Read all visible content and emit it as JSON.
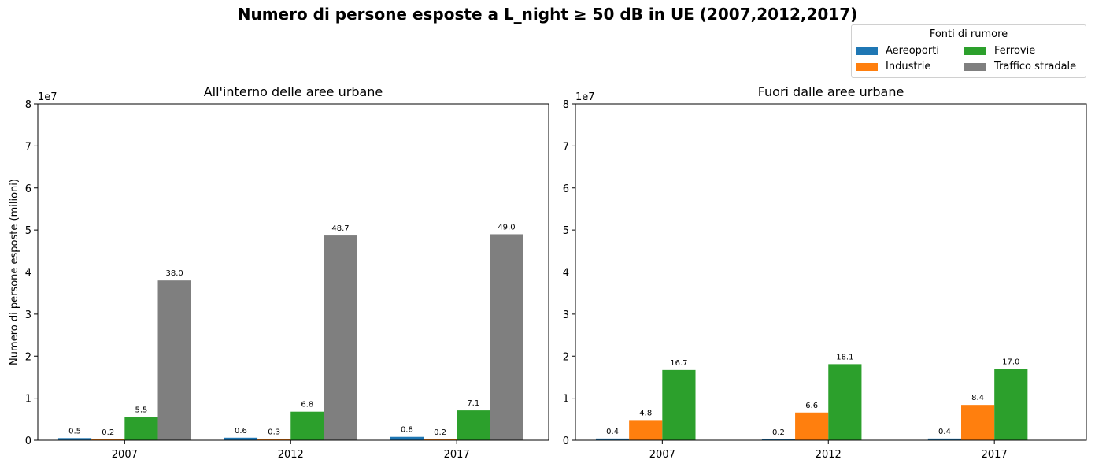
{
  "title": "Numero di persone esposte a L_night ≥ 50 dB in UE (2007,2012,2017)",
  "legend": {
    "title": "Fonti di rumore",
    "items": [
      {
        "label": "Aereoporti",
        "color": "#1f77b4"
      },
      {
        "label": "Industrie",
        "color": "#ff7f0e"
      },
      {
        "label": "Ferrovie",
        "color": "#2ca02c"
      },
      {
        "label": "Traffico stradale",
        "color": "#7f7f7f"
      }
    ]
  },
  "chart_data": [
    {
      "type": "bar",
      "title": "All'interno delle aree urbane",
      "ylabel": "Numero di persone esposte (milioni)",
      "y_offset_label": "1e7",
      "ylim": [
        0,
        80000000
      ],
      "yticks": [
        "0",
        "1",
        "2",
        "3",
        "4",
        "5",
        "6",
        "7",
        "8"
      ],
      "categories": [
        "2007",
        "2012",
        "2017"
      ],
      "series": [
        {
          "name": "Aereoporti",
          "color": "#1f77b4",
          "values": [
            500000,
            600000,
            800000
          ],
          "labels": [
            "0.5",
            "0.6",
            "0.8"
          ]
        },
        {
          "name": "Industrie",
          "color": "#ff7f0e",
          "values": [
            200000,
            300000,
            200000
          ],
          "labels": [
            "0.2",
            "0.3",
            "0.2"
          ]
        },
        {
          "name": "Ferrovie",
          "color": "#2ca02c",
          "values": [
            5500000,
            6800000,
            7100000
          ],
          "labels": [
            "5.5",
            "6.8",
            "7.1"
          ]
        },
        {
          "name": "Traffico stradale",
          "color": "#7f7f7f",
          "values": [
            38000000,
            48700000,
            49000000
          ],
          "labels": [
            "38.0",
            "48.7",
            "49.0"
          ]
        }
      ]
    },
    {
      "type": "bar",
      "title": "Fuori dalle aree urbane",
      "ylabel": "",
      "y_offset_label": "1e7",
      "ylim": [
        0,
        80000000
      ],
      "yticks": [
        "0",
        "1",
        "2",
        "3",
        "4",
        "5",
        "6",
        "7",
        "8"
      ],
      "categories": [
        "2007",
        "2012",
        "2017"
      ],
      "series": [
        {
          "name": "Aereoporti",
          "color": "#1f77b4",
          "values": [
            400000,
            200000,
            400000
          ],
          "labels": [
            "0.4",
            "0.2",
            "0.4"
          ]
        },
        {
          "name": "Industrie",
          "color": "#ff7f0e",
          "values": [
            4800000,
            6600000,
            8400000
          ],
          "labels": [
            "4.8",
            "6.6",
            "8.4"
          ]
        },
        {
          "name": "Ferrovie",
          "color": "#2ca02c",
          "values": [
            16700000,
            18100000,
            17000000
          ],
          "labels": [
            "16.7",
            "18.1",
            "17.0"
          ]
        }
      ]
    }
  ]
}
